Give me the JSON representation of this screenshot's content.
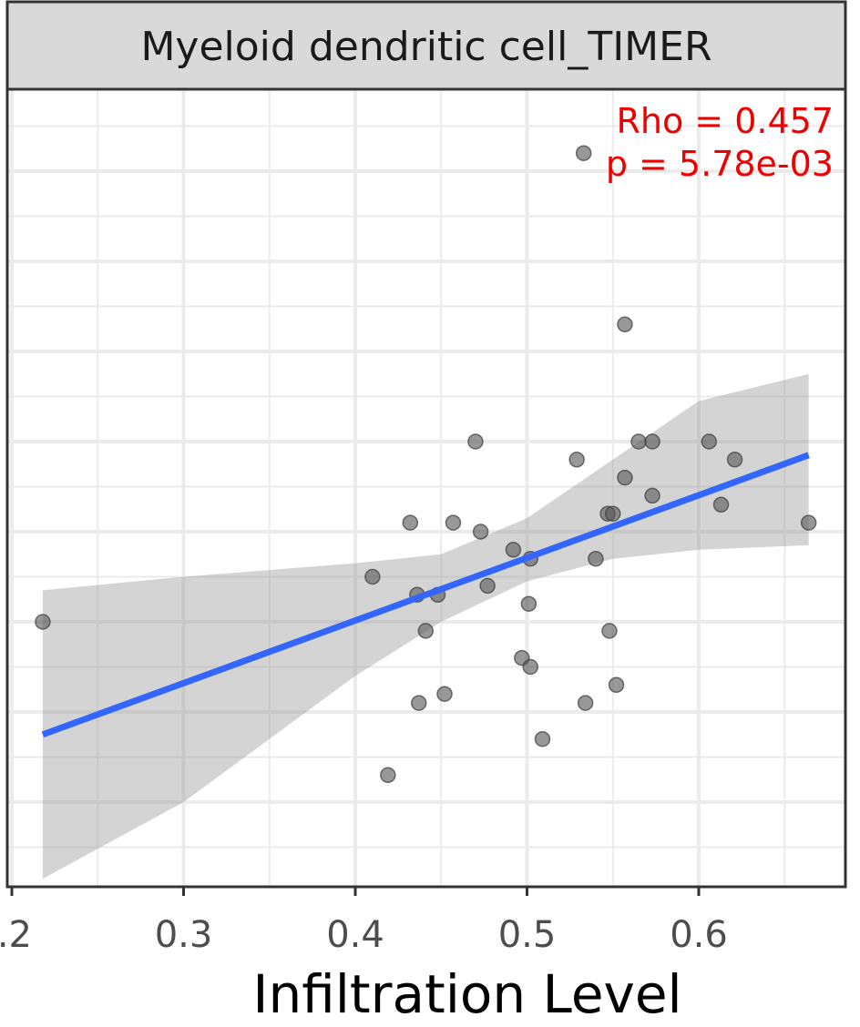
{
  "chart_data": {
    "type": "scatter",
    "title": "Myeloid dendritic cell_TIMER",
    "xlabel": "Infiltration Level",
    "ylabel": "",
    "xlim": [
      0.2,
      0.665
    ],
    "ylim": [
      0,
      9
    ],
    "x_ticks": [
      0.2,
      0.3,
      0.4,
      0.5,
      0.6
    ],
    "x_tick_labels": [
      ".2",
      "0.3",
      "0.4",
      "0.5",
      "0.6"
    ],
    "grid": true,
    "annotations": {
      "rho": "Rho = 0.457",
      "p": "p = 5.78e-03"
    },
    "colors": {
      "points": "#595959",
      "fit_line": "#3366ff",
      "ci_band": "#999999",
      "stat_text": "#ee0000",
      "strip_background": "#d9d9d9"
    },
    "points": [
      {
        "x": 0.218,
        "y": 3.0
      },
      {
        "x": 0.41,
        "y": 3.5
      },
      {
        "x": 0.419,
        "y": 1.3
      },
      {
        "x": 0.432,
        "y": 4.1
      },
      {
        "x": 0.436,
        "y": 3.3
      },
      {
        "x": 0.437,
        "y": 2.1
      },
      {
        "x": 0.441,
        "y": 2.9
      },
      {
        "x": 0.448,
        "y": 3.3
      },
      {
        "x": 0.452,
        "y": 2.2
      },
      {
        "x": 0.457,
        "y": 4.1
      },
      {
        "x": 0.47,
        "y": 5.0
      },
      {
        "x": 0.473,
        "y": 4.0
      },
      {
        "x": 0.477,
        "y": 3.4
      },
      {
        "x": 0.492,
        "y": 3.8
      },
      {
        "x": 0.497,
        "y": 2.6
      },
      {
        "x": 0.501,
        "y": 3.2
      },
      {
        "x": 0.502,
        "y": 2.5
      },
      {
        "x": 0.502,
        "y": 3.7
      },
      {
        "x": 0.509,
        "y": 1.7
      },
      {
        "x": 0.529,
        "y": 4.8
      },
      {
        "x": 0.533,
        "y": 8.2
      },
      {
        "x": 0.534,
        "y": 2.1
      },
      {
        "x": 0.54,
        "y": 3.7
      },
      {
        "x": 0.547,
        "y": 4.2
      },
      {
        "x": 0.548,
        "y": 2.9
      },
      {
        "x": 0.55,
        "y": 4.2
      },
      {
        "x": 0.552,
        "y": 2.3
      },
      {
        "x": 0.557,
        "y": 6.3
      },
      {
        "x": 0.557,
        "y": 4.6
      },
      {
        "x": 0.565,
        "y": 5.0
      },
      {
        "x": 0.573,
        "y": 5.0
      },
      {
        "x": 0.573,
        "y": 4.4
      },
      {
        "x": 0.606,
        "y": 5.0
      },
      {
        "x": 0.613,
        "y": 4.3
      },
      {
        "x": 0.621,
        "y": 4.8
      },
      {
        "x": 0.664,
        "y": 4.1
      }
    ],
    "fit": {
      "x": [
        0.218,
        0.664
      ],
      "y": [
        1.75,
        4.85
      ]
    },
    "ci_band": {
      "x": [
        0.218,
        0.3,
        0.4,
        0.45,
        0.5,
        0.55,
        0.6,
        0.664
      ],
      "upper": [
        3.35,
        3.5,
        3.65,
        3.75,
        4.15,
        4.8,
        5.45,
        5.75
      ],
      "lower": [
        0.15,
        1.0,
        2.4,
        3.0,
        3.45,
        3.7,
        3.8,
        3.85
      ]
    }
  }
}
